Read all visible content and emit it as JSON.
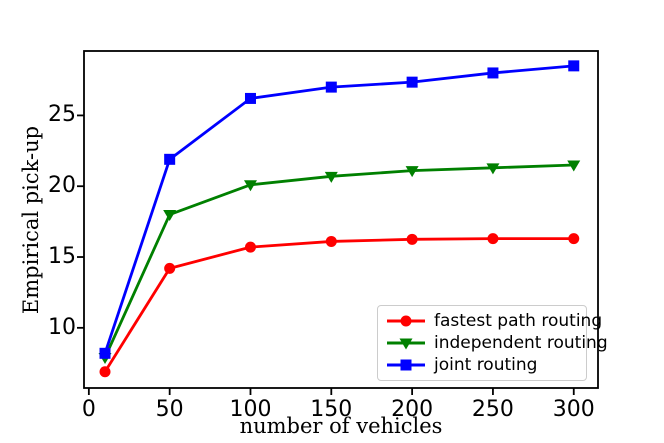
{
  "figure": {
    "background": "#ffffff"
  },
  "chart_data": {
    "type": "line",
    "title": "",
    "xlabel": "number of vehicles",
    "ylabel": "Empirical pick-up",
    "x": [
      10,
      50,
      100,
      150,
      200,
      250,
      300
    ],
    "series": [
      {
        "name": "fastest path routing",
        "color": "#ff0000",
        "marker": "circle",
        "values": [
          6.9,
          14.2,
          15.7,
          16.1,
          16.25,
          16.3,
          16.3
        ]
      },
      {
        "name": "independent routing",
        "color": "#008000",
        "marker": "triangle-down",
        "values": [
          7.9,
          18.0,
          20.1,
          20.7,
          21.1,
          21.3,
          21.5
        ]
      },
      {
        "name": "joint routing",
        "color": "#0000ff",
        "marker": "square",
        "values": [
          8.2,
          21.9,
          26.2,
          27.0,
          27.35,
          28.0,
          28.5
        ]
      }
    ],
    "xticks": [
      0,
      50,
      100,
      150,
      200,
      250,
      300
    ],
    "yticks": [
      10,
      15,
      20,
      25
    ],
    "xlim": [
      -3,
      315
    ],
    "ylim": [
      5.75,
      29.55
    ],
    "grid": false,
    "legend_position": "lower right",
    "axis_color": "#000000"
  }
}
